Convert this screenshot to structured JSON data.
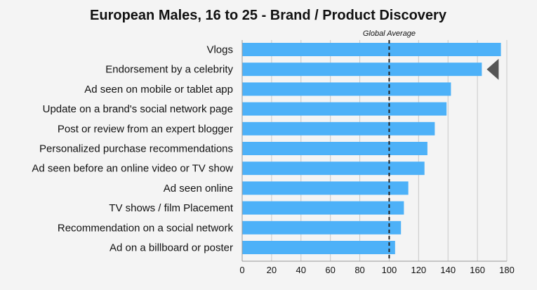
{
  "chart_data": {
    "type": "bar",
    "orientation": "horizontal",
    "title": "European Males, 16 to 25 - Brand / Product Discovery",
    "categories": [
      "Vlogs",
      "Endorsement by a celebrity",
      "Ad seen on mobile or tablet app",
      "Update on a brand's social network page",
      "Post or review from an expert blogger",
      "Personalized purchase recommendations",
      "Ad seen before an online video or TV show",
      "Ad seen online",
      "TV shows / film Placement",
      "Recommendation on a social network",
      "Ad on a billboard or poster"
    ],
    "values": [
      176,
      163,
      142,
      139,
      131,
      126,
      124,
      113,
      110,
      108,
      104
    ],
    "xlim": [
      0,
      180
    ],
    "xticks": [
      "0",
      "20",
      "40",
      "60",
      "80",
      "100",
      "120",
      "140",
      "160",
      "180"
    ],
    "grid": "vertical",
    "reference_line": {
      "value": 100,
      "label": "Global Average",
      "style": "dashed"
    },
    "highlight_marker": {
      "category_index": 1,
      "shape": "left-pointing triangle"
    },
    "colors": {
      "bar": "#4db1f8",
      "grid": "#c8c8c8",
      "reference": "#222222",
      "marker": "#555555",
      "background": "#f4f4f4"
    }
  }
}
